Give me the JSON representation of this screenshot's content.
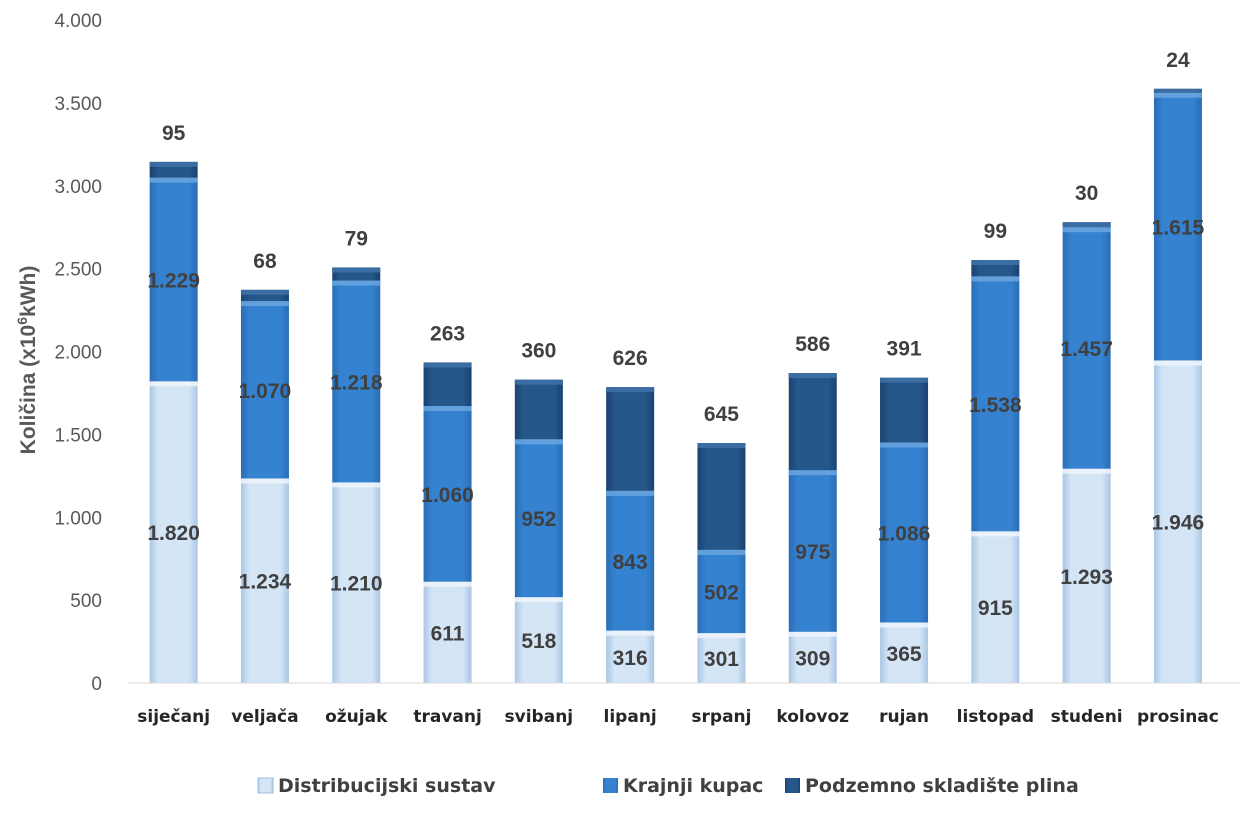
{
  "chart_data": {
    "type": "bar",
    "stacked": true,
    "categories": [
      "siječanj",
      "veljača",
      "ožujak",
      "travanj",
      "svibanj",
      "lipanj",
      "srpanj",
      "kolovoz",
      "rujan",
      "listopad",
      "studeni",
      "prosinac"
    ],
    "series": [
      {
        "name": "Distribucijski sustav",
        "values": [
          1820,
          1234,
          1210,
          611,
          518,
          316,
          301,
          309,
          365,
          915,
          1293,
          1946
        ],
        "labels": [
          "1.820",
          "1.234",
          "1.210",
          "611",
          "518",
          "316",
          "301",
          "309",
          "365",
          "915",
          "1.293",
          "1.946"
        ],
        "color": "#c9ddf0"
      },
      {
        "name": "Krajnji kupac",
        "values": [
          1229,
          1070,
          1218,
          1060,
          952,
          843,
          502,
          975,
          1086,
          1538,
          1457,
          1615
        ],
        "labels": [
          "1.229",
          "1.070",
          "1.218",
          "1.060",
          "952",
          "843",
          "502",
          "975",
          "1.086",
          "1.538",
          "1.457",
          "1.615"
        ],
        "color": "#2f78c4"
      },
      {
        "name": "Podzemno skladište plina",
        "values": [
          95,
          68,
          79,
          263,
          360,
          626,
          645,
          586,
          391,
          99,
          30,
          24
        ],
        "labels": [
          "95",
          "68",
          "79",
          "263",
          "360",
          "626",
          "645",
          "586",
          "391",
          "99",
          "30",
          "24"
        ],
        "color": "#1f4e79"
      }
    ],
    "ylabel_main": "Količina (x10",
    "ylabel_sup": "6",
    "ylabel_unit": "kWh)",
    "ylim": [
      0,
      4000
    ],
    "yticks": [
      0,
      500,
      1000,
      1500,
      2000,
      2500,
      3000,
      3500,
      4000
    ],
    "ytick_labels": [
      "0",
      "500",
      "1.000",
      "1.500",
      "2.000",
      "2.500",
      "3.000",
      "3.500",
      "4.000"
    ],
    "grid": false,
    "legend_position": "bottom"
  }
}
